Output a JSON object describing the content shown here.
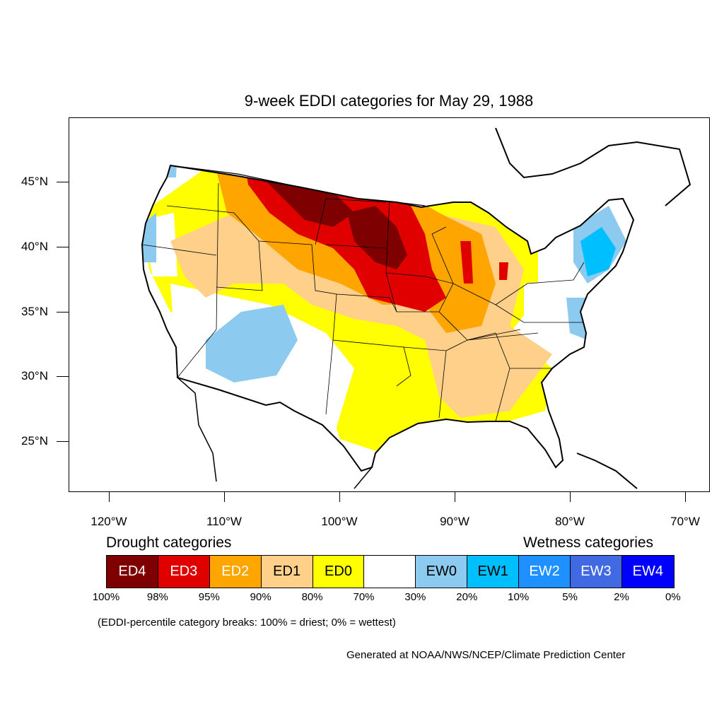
{
  "title": "9-week EDDI categories for May 29, 1988",
  "map": {
    "type": "choropleth-map",
    "region": "Contiguous United States",
    "lon_range": [
      -124.8,
      -68.3
    ],
    "lat_range": [
      21,
      49.5
    ],
    "lat_ticks": [
      "45°N",
      "40°N",
      "35°N",
      "30°N",
      "25°N"
    ],
    "lon_ticks": [
      "120°W",
      "110°W",
      "100°W",
      "90°W",
      "80°W",
      "70°W"
    ]
  },
  "colors": {
    "ED4": "#7f0000",
    "ED3": "#e00000",
    "ED2": "#ffa500",
    "ED1": "#ffd08a",
    "ED0": "#ffff00",
    "neutral": "#ffffff",
    "EW0": "#8ccbef",
    "EW1": "#00bfff",
    "EW2": "#1e90ff",
    "EW3": "#4169e1",
    "EW4": "#0000ff"
  },
  "legend": {
    "drought_heading": "Drought categories",
    "wetness_heading": "Wetness categories",
    "categories": [
      {
        "label": "ED4",
        "color": "#7f0000",
        "text_color": "#ffffff"
      },
      {
        "label": "ED3",
        "color": "#e00000",
        "text_color": "#ffffff"
      },
      {
        "label": "ED2",
        "color": "#ffa500",
        "text_color": "#ffffff"
      },
      {
        "label": "ED1",
        "color": "#ffd08a",
        "text_color": "#000000"
      },
      {
        "label": "ED0",
        "color": "#ffff00",
        "text_color": "#000000"
      },
      {
        "label": "",
        "color": "#ffffff",
        "text_color": "#000000"
      },
      {
        "label": "EW0",
        "color": "#8ccbef",
        "text_color": "#000000"
      },
      {
        "label": "EW1",
        "color": "#00bfff",
        "text_color": "#000000"
      },
      {
        "label": "EW2",
        "color": "#1e90ff",
        "text_color": "#ffffff"
      },
      {
        "label": "EW3",
        "color": "#4169e1",
        "text_color": "#ffffff"
      },
      {
        "label": "EW4",
        "color": "#0000ff",
        "text_color": "#ffffff"
      }
    ],
    "percent_breaks": [
      "100%",
      "98%",
      "95%",
      "90%",
      "80%",
      "70%",
      "30%",
      "20%",
      "10%",
      "5%",
      "2%",
      "0%"
    ],
    "note": "(EDDI-percentile category breaks: 100% = driest; 0% = wettest)"
  },
  "credit": "Generated at NOAA/NWS/NCEP/Climate Prediction Center"
}
